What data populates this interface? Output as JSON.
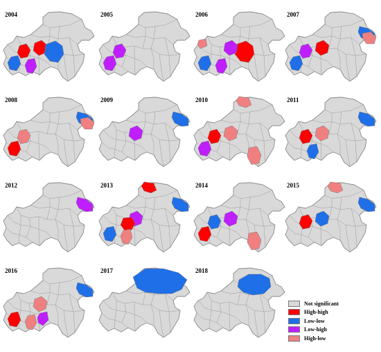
{
  "legend": [
    {
      "label": "Not significant",
      "color": "#d9d9d9"
    },
    {
      "label": "High-high",
      "color": "#ff0000"
    },
    {
      "label": "Low-low",
      "color": "#1f6fe8"
    },
    {
      "label": "Low-high",
      "color": "#bf1eff"
    },
    {
      "label": "High-low",
      "color": "#f08080"
    }
  ],
  "panels": [
    {
      "year": "2004",
      "clusters": [
        {
          "type": "High-high",
          "region": "W"
        },
        {
          "type": "High-high",
          "region": "C"
        },
        {
          "type": "Low-low",
          "region": "E"
        },
        {
          "type": "Low-low",
          "region": "SW"
        },
        {
          "type": "Low-high",
          "region": "S"
        }
      ]
    },
    {
      "year": "2005",
      "clusters": [
        {
          "type": "Low-high",
          "region": "W"
        },
        {
          "type": "Low-high",
          "region": "SW"
        }
      ]
    },
    {
      "year": "2006",
      "clusters": [
        {
          "type": "High-low",
          "region": "NW"
        },
        {
          "type": "High-high",
          "region": "E"
        },
        {
          "type": "Low-high",
          "region": "C"
        },
        {
          "type": "Low-high",
          "region": "S"
        },
        {
          "type": "Low-low",
          "region": "SW"
        }
      ]
    },
    {
      "year": "2007",
      "clusters": [
        {
          "type": "Low-low",
          "region": "NE"
        },
        {
          "type": "High-low",
          "region": "NE2"
        },
        {
          "type": "High-high",
          "region": "C"
        },
        {
          "type": "Low-high",
          "region": "W"
        },
        {
          "type": "Low-low",
          "region": "SW"
        }
      ]
    },
    {
      "year": "2008",
      "clusters": [
        {
          "type": "Low-low",
          "region": "NE"
        },
        {
          "type": "High-low",
          "region": "NE2"
        },
        {
          "type": "High-low",
          "region": "W"
        },
        {
          "type": "High-high",
          "region": "SW"
        }
      ]
    },
    {
      "year": "2009",
      "clusters": [
        {
          "type": "Low-low",
          "region": "NE"
        },
        {
          "type": "Low-high",
          "region": "C"
        }
      ]
    },
    {
      "year": "2010",
      "clusters": [
        {
          "type": "High-low",
          "region": "N"
        },
        {
          "type": "High-high",
          "region": "W"
        },
        {
          "type": "Low-high",
          "region": "SW"
        },
        {
          "type": "High-low",
          "region": "C"
        },
        {
          "type": "High-low",
          "region": "SE"
        }
      ]
    },
    {
      "year": "2011",
      "clusters": [
        {
          "type": "Low-low",
          "region": "NE"
        },
        {
          "type": "High-high",
          "region": "W"
        },
        {
          "type": "High-low",
          "region": "C"
        },
        {
          "type": "Low-low",
          "region": "S"
        }
      ]
    },
    {
      "year": "2012",
      "clusters": [
        {
          "type": "Low-high",
          "region": "NE"
        }
      ]
    },
    {
      "year": "2013",
      "clusters": [
        {
          "type": "High-high",
          "region": "N"
        },
        {
          "type": "Low-low",
          "region": "NE"
        },
        {
          "type": "Low-high",
          "region": "C"
        },
        {
          "type": "High-high",
          "region": "C2"
        },
        {
          "type": "High-low",
          "region": "S"
        },
        {
          "type": "Low-low",
          "region": "SW"
        }
      ]
    },
    {
      "year": "2014",
      "clusters": [
        {
          "type": "Low-high",
          "region": "C"
        },
        {
          "type": "Low-low",
          "region": "W"
        },
        {
          "type": "High-high",
          "region": "SW"
        },
        {
          "type": "High-low",
          "region": "SE"
        }
      ]
    },
    {
      "year": "2015",
      "clusters": [
        {
          "type": "Low-low",
          "region": "NE"
        },
        {
          "type": "High-low",
          "region": "N"
        },
        {
          "type": "Low-low",
          "region": "C"
        },
        {
          "type": "High-high",
          "region": "W"
        }
      ]
    },
    {
      "year": "2016",
      "clusters": [
        {
          "type": "Low-low",
          "region": "NE"
        },
        {
          "type": "High-high",
          "region": "SW"
        },
        {
          "type": "High-low",
          "region": "S"
        },
        {
          "type": "Low-high",
          "region": "S2"
        },
        {
          "type": "High-low",
          "region": "C"
        }
      ]
    },
    {
      "year": "2017",
      "clusters": [
        {
          "type": "Low-low",
          "region": "NE"
        }
      ]
    },
    {
      "year": "2018",
      "clusters": [
        {
          "type": "Low-low",
          "region": "NE"
        }
      ]
    }
  ]
}
